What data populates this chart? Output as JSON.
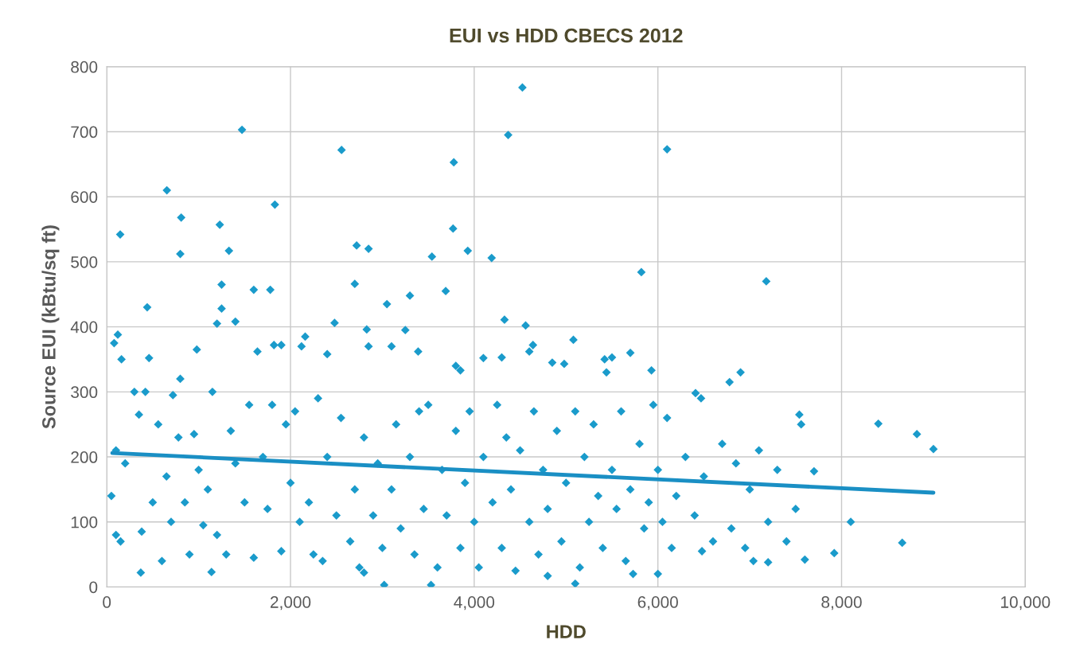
{
  "chart_data": {
    "type": "scatter",
    "title": "EUI vs HDD CBECS 2012",
    "xlabel": "HDD",
    "ylabel": "Source EUI (kBtu/sq ft)",
    "xlim": [
      0,
      10000
    ],
    "xticks": [
      {
        "value": 0,
        "label": "0"
      },
      {
        "value": 2000,
        "label": "2,000"
      },
      {
        "value": 4000,
        "label": "4,000"
      },
      {
        "value": 6000,
        "label": "6,000"
      },
      {
        "value": 8000,
        "label": "8,000"
      },
      {
        "value": 10000,
        "label": "10,000"
      }
    ],
    "ylim": [
      0,
      800
    ],
    "yticks": [
      0,
      100,
      200,
      300,
      400,
      500,
      600,
      700,
      800
    ],
    "grid": true,
    "series": [
      {
        "color": "#1a9bcb",
        "marker": "diamond",
        "x": [
          146,
          654,
          1472,
          2556,
          3778,
          4525,
          4370,
          6100,
          810,
          800,
          1230,
          1330,
          1830,
          2720,
          2850,
          3540,
          3930,
          4190,
          3770,
          3690,
          5820,
          7180,
          1600,
          1780,
          1250,
          2700,
          440,
          1250,
          3300,
          4330,
          4560,
          2480,
          3250,
          1400,
          1200,
          3050,
          120,
          80,
          160,
          460,
          980,
          1640,
          1820,
          1900,
          2120,
          2160,
          2400,
          2830,
          2850,
          3100,
          3390,
          3800,
          3850,
          4100,
          4300,
          4640,
          4600,
          4850,
          4980,
          5080,
          5420,
          5500,
          5700,
          5440,
          5930,
          6470,
          6410,
          6900,
          6780,
          7540,
          8400,
          8820,
          9000,
          7560,
          7700,
          8100,
          8660,
          7920,
          7600,
          7040,
          7200,
          6000,
          5100,
          3020,
          3530,
          370,
          1140,
          2800,
          4800,
          5730,
          6480,
          50,
          100,
          100,
          150,
          200,
          300,
          350,
          380,
          420,
          500,
          560,
          600,
          650,
          700,
          720,
          780,
          800,
          850,
          900,
          950,
          1000,
          1050,
          1100,
          1150,
          1200,
          1300,
          1350,
          1400,
          1500,
          1550,
          1600,
          1700,
          1750,
          1800,
          1900,
          1950,
          2000,
          2050,
          2100,
          2200,
          2250,
          2300,
          2350,
          2400,
          2500,
          2550,
          2650,
          2700,
          2750,
          2800,
          2900,
          2950,
          3000,
          3100,
          3150,
          3200,
          3300,
          3350,
          3400,
          3450,
          3500,
          3600,
          3650,
          3700,
          3800,
          3850,
          3900,
          3950,
          4000,
          4050,
          4100,
          4200,
          4250,
          4300,
          4350,
          4400,
          4450,
          4500,
          4600,
          4650,
          4700,
          4750,
          4800,
          4900,
          4950,
          5000,
          5100,
          5150,
          5200,
          5250,
          5300,
          5350,
          5400,
          5500,
          5550,
          5600,
          5650,
          5700,
          5800,
          5850,
          5900,
          5950,
          6000,
          6050,
          6100,
          6150,
          6200,
          6300,
          6400,
          6500,
          6600,
          6700,
          6800,
          6850,
          6950,
          7000,
          7100,
          7200,
          7300,
          7400,
          7500
        ],
        "values": [
          542,
          610,
          703,
          672,
          653,
          768,
          695,
          673,
          568,
          512,
          557,
          517,
          588,
          525,
          520,
          508,
          517,
          506,
          551,
          455,
          484,
          470,
          457,
          457,
          465,
          466,
          430,
          428,
          448,
          411,
          402,
          406,
          395,
          408,
          405,
          435,
          388,
          375,
          350,
          352,
          365,
          362,
          372,
          372,
          370,
          385,
          358,
          396,
          370,
          370,
          362,
          340,
          333,
          352,
          353,
          372,
          362,
          345,
          343,
          380,
          350,
          353,
          360,
          330,
          333,
          290,
          298,
          330,
          315,
          265,
          251,
          235,
          212,
          250,
          178,
          100,
          68,
          52,
          42,
          40,
          38,
          20,
          5,
          3,
          3,
          22,
          23,
          22,
          17,
          20,
          55,
          140,
          210,
          80,
          70,
          190,
          300,
          265,
          85,
          300,
          130,
          250,
          40,
          170,
          100,
          295,
          230,
          320,
          130,
          50,
          235,
          180,
          95,
          150,
          300,
          80,
          50,
          240,
          190,
          130,
          280,
          45,
          200,
          120,
          280,
          55,
          250,
          160,
          270,
          100,
          130,
          50,
          290,
          40,
          200,
          110,
          260,
          70,
          150,
          30,
          230,
          110,
          190,
          60,
          150,
          250,
          90,
          200,
          50,
          270,
          120,
          280,
          30,
          180,
          110,
          240,
          60,
          160,
          270,
          100,
          30,
          200,
          130,
          280,
          60,
          230,
          150,
          25,
          210,
          100,
          270,
          50,
          180,
          120,
          240,
          70,
          160,
          270,
          30,
          200,
          100,
          250,
          140,
          60,
          180,
          120,
          270,
          40,
          150,
          220,
          90,
          130,
          280,
          180,
          100,
          260,
          60,
          140,
          200,
          110,
          170,
          70,
          220,
          90,
          190,
          60,
          150,
          210,
          100,
          180,
          70,
          120
        ]
      },
      {
        "type": "line",
        "color": "#1a8fc4",
        "line_style": "solid",
        "x": [
          60,
          9000
        ],
        "values": [
          206,
          145
        ]
      }
    ]
  }
}
